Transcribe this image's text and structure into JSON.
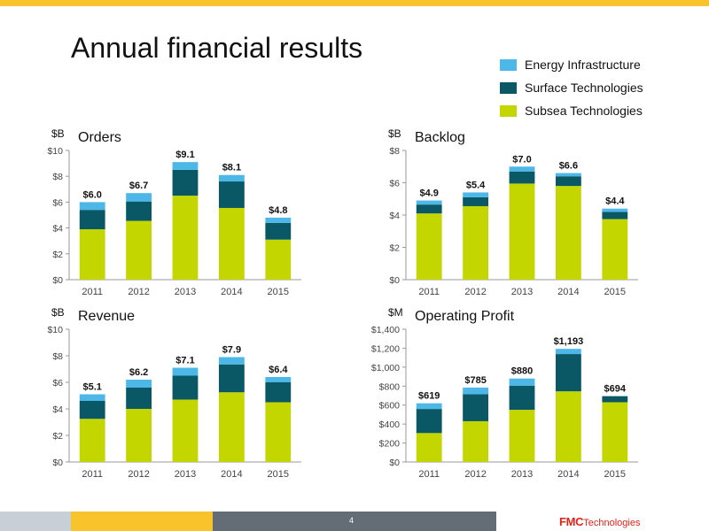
{
  "title": "Annual financial results",
  "colors": {
    "top_bar": "#f9c42b",
    "energy": "#4db8e8",
    "surface": "#0a5865",
    "subsea": "#c4d600",
    "footer_grey": "#c8cfd6",
    "footer_yellow": "#f9c42b",
    "footer_dark": "#646d75",
    "brand_red": "#e2231a"
  },
  "legend": [
    {
      "label": "Energy Infrastructure",
      "color": "#4db8e8"
    },
    {
      "label": "Surface Technologies",
      "color": "#0a5865"
    },
    {
      "label": "Subsea Technologies",
      "color": "#c4d600"
    }
  ],
  "footer": {
    "page_number": "4",
    "logo_mark": "FMC",
    "logo_text": "Technologies"
  },
  "chart_data": [
    {
      "type": "bar",
      "stacked": true,
      "title": "Orders",
      "unit": "$B",
      "categories": [
        "2011",
        "2012",
        "2013",
        "2014",
        "2015"
      ],
      "series": [
        {
          "name": "Subsea Technologies",
          "values": [
            3.9,
            4.55,
            6.5,
            5.55,
            3.1
          ]
        },
        {
          "name": "Surface Technologies",
          "values": [
            1.5,
            1.5,
            2.0,
            2.05,
            1.3
          ]
        },
        {
          "name": "Energy Infrastructure",
          "values": [
            0.6,
            0.65,
            0.6,
            0.5,
            0.4
          ]
        }
      ],
      "totals": [
        "$6.0",
        "$6.7",
        "$9.1",
        "$8.1",
        "$4.8"
      ],
      "ylim": [
        0,
        10
      ],
      "yticks": [
        0,
        2,
        4,
        6,
        8,
        10
      ],
      "ytick_labels": [
        "$0",
        "$2",
        "$4",
        "$6",
        "$8",
        "$10"
      ],
      "grid": false,
      "legend": "shared, top-right"
    },
    {
      "type": "bar",
      "stacked": true,
      "title": "Backlog",
      "unit": "$B",
      "categories": [
        "2011",
        "2012",
        "2013",
        "2014",
        "2015"
      ],
      "series": [
        {
          "name": "Subsea Technologies",
          "values": [
            4.1,
            4.55,
            5.95,
            5.8,
            3.75
          ]
        },
        {
          "name": "Surface Technologies",
          "values": [
            0.55,
            0.55,
            0.75,
            0.6,
            0.45
          ]
        },
        {
          "name": "Energy Infrastructure",
          "values": [
            0.25,
            0.3,
            0.3,
            0.2,
            0.2
          ]
        }
      ],
      "totals": [
        "$4.9",
        "$5.4",
        "$7.0",
        "$6.6",
        "$4.4"
      ],
      "ylim": [
        0,
        8
      ],
      "yticks": [
        0,
        2,
        4,
        6,
        8
      ],
      "ytick_labels": [
        "$0",
        "$2",
        "$4",
        "$6",
        "$8"
      ],
      "grid": false,
      "legend": "shared, top-right"
    },
    {
      "type": "bar",
      "stacked": true,
      "title": "Revenue",
      "unit": "$B",
      "categories": [
        "2011",
        "2012",
        "2013",
        "2014",
        "2015"
      ],
      "series": [
        {
          "name": "Subsea Technologies",
          "values": [
            3.25,
            4.0,
            4.7,
            5.25,
            4.5
          ]
        },
        {
          "name": "Surface Technologies",
          "values": [
            1.35,
            1.6,
            1.8,
            2.1,
            1.5
          ]
        },
        {
          "name": "Energy Infrastructure",
          "values": [
            0.5,
            0.6,
            0.6,
            0.55,
            0.4
          ]
        }
      ],
      "totals": [
        "$5.1",
        "$6.2",
        "$7.1",
        "$7.9",
        "$6.4"
      ],
      "ylim": [
        0,
        10
      ],
      "yticks": [
        0,
        2,
        4,
        6,
        8,
        10
      ],
      "ytick_labels": [
        "$0",
        "$2",
        "$4",
        "$6",
        "$8",
        "$10"
      ],
      "grid": false,
      "legend": "shared, top-right"
    },
    {
      "type": "bar",
      "stacked": true,
      "title": "Operating Profit",
      "unit": "$M",
      "categories": [
        "2011",
        "2012",
        "2013",
        "2014",
        "2015"
      ],
      "series": [
        {
          "name": "Subsea Technologies",
          "values": [
            305,
            430,
            550,
            745,
            630
          ]
        },
        {
          "name": "Surface Technologies",
          "values": [
            254,
            285,
            255,
            393,
            64
          ]
        },
        {
          "name": "Energy Infrastructure",
          "values": [
            60,
            70,
            75,
            55,
            0
          ]
        }
      ],
      "totals": [
        "$619",
        "$785",
        "$880",
        "$1,193",
        "$694"
      ],
      "ylim": [
        0,
        1400
      ],
      "yticks": [
        0,
        200,
        400,
        600,
        800,
        1000,
        1200,
        1400
      ],
      "ytick_labels": [
        "$0",
        "$200",
        "$400",
        "$600",
        "$800",
        "$1,000",
        "$1,200",
        "$1,400"
      ],
      "grid": false,
      "legend": "shared, top-right"
    }
  ]
}
